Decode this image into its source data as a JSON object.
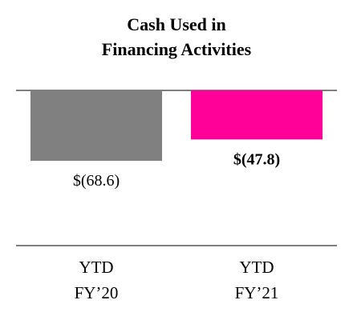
{
  "chart_data": {
    "type": "bar",
    "title": "Cash Used in\nFinancing Activities",
    "categories": [
      "YTD\nFY’20",
      "YTD\nFY’21"
    ],
    "values": [
      -68.6,
      -47.8
    ],
    "value_labels": [
      "$(68.6)",
      "$(47.8)"
    ],
    "value_label_weights": [
      "normal",
      "bold"
    ],
    "colors": [
      "#808080",
      "#ff0099"
    ]
  }
}
